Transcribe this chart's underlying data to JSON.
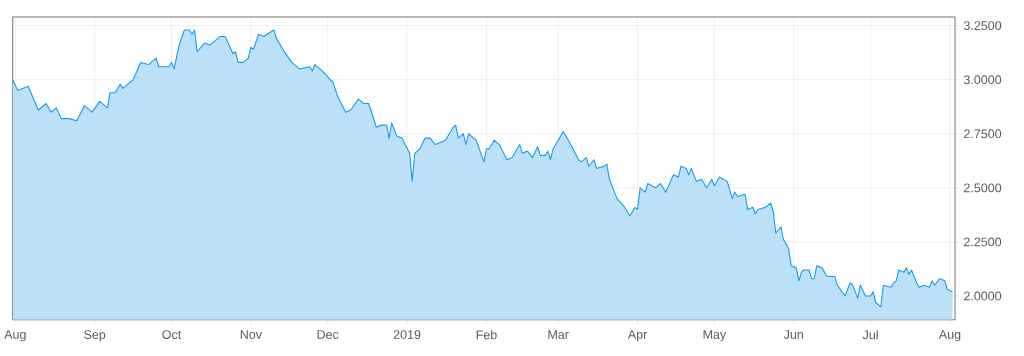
{
  "chart_data": {
    "type": "area",
    "x": [
      "2018-07-31",
      "2018-08-02",
      "2018-08-06",
      "2018-08-10",
      "2018-08-13",
      "2018-08-15",
      "2018-08-17",
      "2018-08-19",
      "2018-08-22",
      "2018-08-25",
      "2018-08-28",
      "2018-08-31",
      "2018-09-03",
      "2018-09-06",
      "2018-09-07",
      "2018-09-09",
      "2018-09-11",
      "2018-09-12",
      "2018-09-16",
      "2018-09-19",
      "2018-09-22",
      "2018-09-25",
      "2018-09-26",
      "2018-09-30",
      "2018-10-01",
      "2018-10-02",
      "2018-10-04",
      "2018-10-06",
      "2018-10-08",
      "2018-10-09",
      "2018-10-10",
      "2018-10-11",
      "2018-10-14",
      "2018-10-16",
      "2018-10-20",
      "2018-10-22",
      "2018-10-25",
      "2018-10-26",
      "2018-10-27",
      "2018-10-29",
      "2018-10-31",
      "2018-11-01",
      "2018-11-02",
      "2018-11-04",
      "2018-11-06",
      "2018-11-10",
      "2018-11-11",
      "2018-11-14",
      "2018-11-17",
      "2018-11-20",
      "2018-11-24",
      "2018-11-25",
      "2018-11-26",
      "2018-11-29",
      "2018-12-02",
      "2018-12-03",
      "2018-12-05",
      "2018-12-08",
      "2018-12-10",
      "2018-12-13",
      "2018-12-15",
      "2018-12-17",
      "2018-12-20",
      "2018-12-22",
      "2018-12-24",
      "2018-12-25",
      "2018-12-26",
      "2018-12-28",
      "2018-12-30",
      "2019-01-02",
      "2019-01-03",
      "2019-01-04",
      "2019-01-06",
      "2019-01-08",
      "2019-01-10",
      "2019-01-12",
      "2019-01-14",
      "2019-01-16",
      "2019-01-19",
      "2019-01-20",
      "2019-01-21",
      "2019-01-23",
      "2019-01-24",
      "2019-01-25",
      "2019-01-28",
      "2019-01-31",
      "2019-02-01",
      "2019-02-02",
      "2019-02-04",
      "2019-02-06",
      "2019-02-09",
      "2019-02-11",
      "2019-02-14",
      "2019-02-15",
      "2019-02-17",
      "2019-02-19",
      "2019-02-21",
      "2019-02-22",
      "2019-02-24",
      "2019-02-25",
      "2019-02-26",
      "2019-02-27",
      "2019-03-03",
      "2019-03-05",
      "2019-03-09",
      "2019-03-10",
      "2019-03-12",
      "2019-03-13",
      "2019-03-15",
      "2019-03-16",
      "2019-03-19",
      "2019-03-20",
      "2019-03-21",
      "2019-03-24",
      "2019-03-27",
      "2019-03-29",
      "2019-03-31",
      "2019-04-01",
      "2019-04-02",
      "2019-04-04",
      "2019-04-05",
      "2019-04-08",
      "2019-04-10",
      "2019-04-12",
      "2019-04-15",
      "2019-04-17",
      "2019-04-18",
      "2019-04-20",
      "2019-04-21",
      "2019-04-22",
      "2019-04-24",
      "2019-04-26",
      "2019-04-28",
      "2019-04-30",
      "2019-05-01",
      "2019-05-03",
      "2019-05-06",
      "2019-05-08",
      "2019-05-09",
      "2019-05-10",
      "2019-05-13",
      "2019-05-14",
      "2019-05-16",
      "2019-05-17",
      "2019-05-18",
      "2019-05-21",
      "2019-05-23",
      "2019-05-24",
      "2019-05-25",
      "2019-05-27",
      "2019-05-28",
      "2019-05-30",
      "2019-05-31",
      "2019-06-02",
      "2019-06-03",
      "2019-06-04",
      "2019-06-05",
      "2019-06-07",
      "2019-06-08",
      "2019-06-09",
      "2019-06-10",
      "2019-06-12",
      "2019-06-14",
      "2019-06-17",
      "2019-06-18",
      "2019-06-21",
      "2019-06-23",
      "2019-06-24",
      "2019-06-26",
      "2019-06-27",
      "2019-06-29",
      "2019-07-01",
      "2019-07-02",
      "2019-07-03",
      "2019-07-05",
      "2019-07-06",
      "2019-07-09",
      "2019-07-10",
      "2019-07-11",
      "2019-07-12",
      "2019-07-14",
      "2019-07-15",
      "2019-07-16",
      "2019-07-17",
      "2019-07-19",
      "2019-07-20",
      "2019-07-22",
      "2019-07-24",
      "2019-07-25",
      "2019-07-26",
      "2019-07-28",
      "2019-07-30",
      "2019-07-31",
      "2019-08-02"
    ],
    "series": [
      {
        "color": "#1a9be8",
        "values": [
          3.0,
          2.95,
          2.97,
          2.86,
          2.89,
          2.85,
          2.87,
          2.82,
          2.82,
          2.81,
          2.88,
          2.85,
          2.9,
          2.87,
          2.94,
          2.94,
          2.98,
          2.96,
          3.0,
          3.08,
          3.07,
          3.1,
          3.06,
          3.06,
          3.08,
          3.05,
          3.16,
          3.23,
          3.23,
          3.21,
          3.23,
          3.13,
          3.17,
          3.16,
          3.2,
          3.2,
          3.12,
          3.13,
          3.08,
          3.08,
          3.1,
          3.15,
          3.14,
          3.21,
          3.2,
          3.23,
          3.19,
          3.13,
          3.08,
          3.05,
          3.06,
          3.04,
          3.07,
          3.04,
          3.0,
          2.99,
          2.92,
          2.85,
          2.86,
          2.91,
          2.89,
          2.89,
          2.78,
          2.79,
          2.79,
          2.73,
          2.8,
          2.74,
          2.73,
          2.66,
          2.53,
          2.66,
          2.68,
          2.73,
          2.73,
          2.7,
          2.71,
          2.72,
          2.78,
          2.79,
          2.73,
          2.75,
          2.7,
          2.75,
          2.72,
          2.62,
          2.68,
          2.68,
          2.72,
          2.7,
          2.63,
          2.64,
          2.7,
          2.66,
          2.67,
          2.64,
          2.69,
          2.65,
          2.65,
          2.67,
          2.63,
          2.68,
          2.76,
          2.72,
          2.63,
          2.62,
          2.64,
          2.6,
          2.63,
          2.59,
          2.6,
          2.61,
          2.54,
          2.45,
          2.41,
          2.37,
          2.41,
          2.4,
          2.5,
          2.48,
          2.52,
          2.5,
          2.52,
          2.48,
          2.56,
          2.55,
          2.6,
          2.59,
          2.56,
          2.59,
          2.53,
          2.54,
          2.5,
          2.54,
          2.51,
          2.55,
          2.53,
          2.45,
          2.48,
          2.46,
          2.47,
          2.4,
          2.41,
          2.38,
          2.4,
          2.41,
          2.43,
          2.39,
          2.29,
          2.32,
          2.26,
          2.22,
          2.14,
          2.13,
          2.07,
          2.11,
          2.12,
          2.12,
          2.08,
          2.08,
          2.14,
          2.13,
          2.09,
          2.09,
          2.05,
          2.0,
          2.06,
          2.05,
          1.99,
          2.05,
          2.0,
          2.0,
          2.02,
          1.97,
          1.95,
          2.05,
          2.04,
          2.06,
          2.07,
          2.12,
          2.11,
          2.13,
          2.1,
          2.12,
          2.06,
          2.04,
          2.05,
          2.04,
          2.07,
          2.05,
          2.08,
          2.07,
          2.03,
          2.02
        ]
      }
    ],
    "xlim": [
      "2018-07-31",
      "2019-08-03"
    ],
    "xticks": [
      {
        "value": "2018-08-01",
        "label": "Aug"
      },
      {
        "value": "2018-09-01",
        "label": "Sep"
      },
      {
        "value": "2018-10-01",
        "label": "Oct"
      },
      {
        "value": "2018-11-01",
        "label": "Nov"
      },
      {
        "value": "2018-12-01",
        "label": "Dec"
      },
      {
        "value": "2019-01-01",
        "label": "2019"
      },
      {
        "value": "2019-02-01",
        "label": "Feb"
      },
      {
        "value": "2019-03-01",
        "label": "Mar"
      },
      {
        "value": "2019-04-01",
        "label": "Apr"
      },
      {
        "value": "2019-05-01",
        "label": "May"
      },
      {
        "value": "2019-06-01",
        "label": "Jun"
      },
      {
        "value": "2019-07-01",
        "label": "Jul"
      },
      {
        "value": "2019-08-01",
        "label": "Aug"
      }
    ],
    "ylim": [
      1.89,
      3.29
    ],
    "yticks": [
      {
        "value": 2,
        "label": "2.0000"
      },
      {
        "value": 2.25,
        "label": "2.2500"
      },
      {
        "value": 2.5,
        "label": "2.5000"
      },
      {
        "value": 2.75,
        "label": "2.7500"
      },
      {
        "value": 3,
        "label": "3.0000"
      },
      {
        "value": 3.25,
        "label": "3.2500"
      }
    ],
    "grid": true,
    "legend": false,
    "marker": "none",
    "line_style": "solid"
  }
}
